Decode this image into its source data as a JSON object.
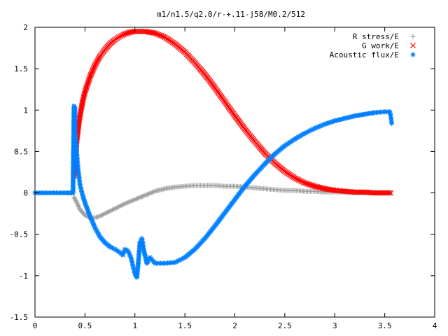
{
  "chart_data": {
    "type": "scatter",
    "title": "m1/n1.5/q2.0/r-+.11-j58/M0.2/512",
    "xlabel": "",
    "ylabel": "",
    "xlim": [
      0,
      4
    ],
    "ylim": [
      -1.5,
      2
    ],
    "x_ticks": [
      "0",
      "0.5",
      "1",
      "1.5",
      "2",
      "2.5",
      "3",
      "3.5",
      "4"
    ],
    "y_ticks": [
      "2",
      "1.5",
      "1",
      "0.5",
      "0",
      "-0.5",
      "-1",
      "-1.5"
    ],
    "grid": false,
    "legend_position": "top-right",
    "series": [
      {
        "name": "R stress/E",
        "marker": "plus",
        "color": "#a0a0a0",
        "points": [
          [
            0.39,
            -0.05
          ],
          [
            0.42,
            -0.12
          ],
          [
            0.45,
            -0.2
          ],
          [
            0.5,
            -0.27
          ],
          [
            0.55,
            -0.3
          ],
          [
            0.6,
            -0.3
          ],
          [
            0.65,
            -0.28
          ],
          [
            0.7,
            -0.25
          ],
          [
            0.8,
            -0.19
          ],
          [
            0.9,
            -0.13
          ],
          [
            1.0,
            -0.08
          ],
          [
            1.1,
            -0.03
          ],
          [
            1.2,
            0.02
          ],
          [
            1.3,
            0.05
          ],
          [
            1.4,
            0.07
          ],
          [
            1.5,
            0.08
          ],
          [
            1.6,
            0.09
          ],
          [
            1.7,
            0.09
          ],
          [
            1.8,
            0.09
          ],
          [
            1.9,
            0.08
          ],
          [
            2.0,
            0.08
          ],
          [
            2.1,
            0.07
          ],
          [
            2.2,
            0.06
          ],
          [
            2.3,
            0.05
          ],
          [
            2.4,
            0.04
          ],
          [
            2.5,
            0.03
          ],
          [
            2.6,
            0.03
          ],
          [
            2.7,
            0.02
          ],
          [
            2.8,
            0.02
          ],
          [
            2.9,
            0.01
          ],
          [
            3.0,
            0.01
          ],
          [
            3.1,
            0.01
          ],
          [
            3.2,
            0.0
          ],
          [
            3.3,
            0.0
          ],
          [
            3.4,
            0.0
          ],
          [
            3.5,
            0.0
          ],
          [
            3.56,
            0.0
          ]
        ]
      },
      {
        "name": "G work/E",
        "marker": "cross",
        "color": "#ff0000",
        "points": [
          [
            0.39,
            0.2
          ],
          [
            0.4,
            0.35
          ],
          [
            0.41,
            0.5
          ],
          [
            0.42,
            0.65
          ],
          [
            0.44,
            0.85
          ],
          [
            0.46,
            1.0
          ],
          [
            0.48,
            1.12
          ],
          [
            0.5,
            1.22
          ],
          [
            0.55,
            1.4
          ],
          [
            0.6,
            1.54
          ],
          [
            0.65,
            1.65
          ],
          [
            0.7,
            1.73
          ],
          [
            0.75,
            1.8
          ],
          [
            0.8,
            1.85
          ],
          [
            0.85,
            1.89
          ],
          [
            0.9,
            1.92
          ],
          [
            0.95,
            1.94
          ],
          [
            1.0,
            1.95
          ],
          [
            1.05,
            1.95
          ],
          [
            1.1,
            1.95
          ],
          [
            1.2,
            1.93
          ],
          [
            1.3,
            1.88
          ],
          [
            1.4,
            1.8
          ],
          [
            1.5,
            1.7
          ],
          [
            1.6,
            1.57
          ],
          [
            1.7,
            1.43
          ],
          [
            1.8,
            1.27
          ],
          [
            1.9,
            1.1
          ],
          [
            2.0,
            0.93
          ],
          [
            2.1,
            0.77
          ],
          [
            2.2,
            0.62
          ],
          [
            2.3,
            0.48
          ],
          [
            2.4,
            0.36
          ],
          [
            2.5,
            0.26
          ],
          [
            2.6,
            0.18
          ],
          [
            2.7,
            0.12
          ],
          [
            2.8,
            0.08
          ],
          [
            2.9,
            0.05
          ],
          [
            3.0,
            0.03
          ],
          [
            3.1,
            0.02
          ],
          [
            3.2,
            0.01
          ],
          [
            3.3,
            0.01
          ],
          [
            3.4,
            0.0
          ],
          [
            3.5,
            0.0
          ],
          [
            3.56,
            0.0
          ]
        ]
      },
      {
        "name": "Acoustic flux/E",
        "marker": "star",
        "color": "#0080ff",
        "points": [
          [
            0.0,
            0.0
          ],
          [
            0.1,
            0.0
          ],
          [
            0.2,
            0.0
          ],
          [
            0.3,
            0.0
          ],
          [
            0.38,
            0.0
          ],
          [
            0.39,
            1.05
          ],
          [
            0.4,
            1.03
          ],
          [
            0.4,
            0.75
          ],
          [
            0.41,
            0.6
          ],
          [
            0.42,
            0.45
          ],
          [
            0.43,
            0.3
          ],
          [
            0.44,
            0.2
          ],
          [
            0.45,
            0.1
          ],
          [
            0.47,
            0.0
          ],
          [
            0.5,
            -0.12
          ],
          [
            0.55,
            -0.28
          ],
          [
            0.6,
            -0.42
          ],
          [
            0.65,
            -0.53
          ],
          [
            0.7,
            -0.6
          ],
          [
            0.75,
            -0.65
          ],
          [
            0.8,
            -0.68
          ],
          [
            0.85,
            -0.72
          ],
          [
            0.88,
            -0.75
          ],
          [
            0.9,
            -0.68
          ],
          [
            0.93,
            -0.7
          ],
          [
            0.96,
            -0.78
          ],
          [
            0.98,
            -0.88
          ],
          [
            1.0,
            -0.98
          ],
          [
            1.02,
            -1.02
          ],
          [
            1.03,
            -0.9
          ],
          [
            1.05,
            -0.6
          ],
          [
            1.07,
            -0.55
          ],
          [
            1.09,
            -0.7
          ],
          [
            1.12,
            -0.85
          ],
          [
            1.15,
            -0.78
          ],
          [
            1.18,
            -0.82
          ],
          [
            1.2,
            -0.85
          ],
          [
            1.3,
            -0.85
          ],
          [
            1.4,
            -0.84
          ],
          [
            1.5,
            -0.78
          ],
          [
            1.6,
            -0.68
          ],
          [
            1.7,
            -0.55
          ],
          [
            1.8,
            -0.4
          ],
          [
            1.9,
            -0.24
          ],
          [
            2.0,
            -0.08
          ],
          [
            2.1,
            0.08
          ],
          [
            2.2,
            0.22
          ],
          [
            2.3,
            0.35
          ],
          [
            2.4,
            0.47
          ],
          [
            2.5,
            0.57
          ],
          [
            2.6,
            0.65
          ],
          [
            2.7,
            0.72
          ],
          [
            2.8,
            0.78
          ],
          [
            2.9,
            0.83
          ],
          [
            3.0,
            0.87
          ],
          [
            3.1,
            0.9
          ],
          [
            3.2,
            0.93
          ],
          [
            3.3,
            0.95
          ],
          [
            3.4,
            0.97
          ],
          [
            3.5,
            0.98
          ],
          [
            3.55,
            0.98
          ],
          [
            3.56,
            0.93
          ],
          [
            3.57,
            0.84
          ]
        ]
      }
    ]
  },
  "colors": {
    "axis": "#000000",
    "background": "#ffffff"
  }
}
